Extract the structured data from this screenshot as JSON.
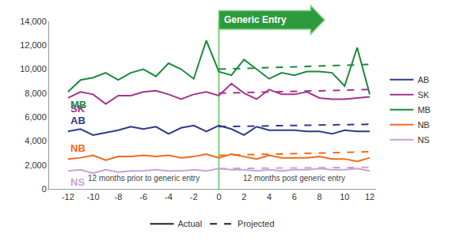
{
  "chart_data": {
    "type": "line",
    "x": [
      -12,
      -11,
      -10,
      -9,
      -8,
      -7,
      -6,
      -5,
      -4,
      -3,
      -2,
      -1,
      0,
      1,
      2,
      3,
      4,
      5,
      6,
      7,
      8,
      9,
      10,
      11,
      12
    ],
    "xlim": [
      -13.5,
      12.5
    ],
    "xticks": [
      -12,
      -10,
      -8,
      -6,
      -4,
      -2,
      0,
      2,
      4,
      6,
      8,
      10,
      12
    ],
    "ylim": [
      0,
      14000
    ],
    "yticks": [
      0,
      {
        "value": 2000,
        "label": "2,000"
      },
      {
        "value": 4000,
        "label": "4,000"
      },
      {
        "value": 6000,
        "label": "6,000"
      },
      {
        "value": 8000,
        "label": "8,000"
      },
      {
        "value": 10000,
        "label": "10,000"
      },
      {
        "value": 12000,
        "label": "12,000"
      },
      {
        "value": 14000,
        "label": "14,000"
      }
    ],
    "grid": false,
    "legend": "right",
    "series": [
      {
        "name": "AB",
        "color": "#2b3a8c",
        "values": [
          4800,
          5000,
          4500,
          4700,
          4900,
          5200,
          5000,
          5200,
          4600,
          5100,
          5300,
          4800,
          5300,
          5000,
          4500,
          5200,
          4900,
          4900,
          4900,
          4800,
          4800,
          4600,
          4900,
          4800,
          4800
        ],
        "projected": [
          null,
          null,
          null,
          null,
          null,
          null,
          null,
          null,
          null,
          null,
          null,
          null,
          5200,
          5220,
          5230,
          5250,
          5260,
          5280,
          5300,
          5310,
          5330,
          5340,
          5360,
          5380,
          5400
        ]
      },
      {
        "name": "SK",
        "color": "#a5338f",
        "values": [
          7600,
          8100,
          7900,
          7100,
          7800,
          7800,
          8100,
          8200,
          7900,
          7500,
          7900,
          8100,
          7800,
          8800,
          8000,
          7500,
          8300,
          7900,
          7900,
          8100,
          7600,
          7500,
          7500,
          7600,
          7700
        ],
        "projected": [
          null,
          null,
          null,
          null,
          null,
          null,
          null,
          null,
          null,
          null,
          null,
          null,
          8000,
          8020,
          8050,
          8070,
          8100,
          8120,
          8150,
          8170,
          8200,
          8220,
          8250,
          8270,
          8300
        ]
      },
      {
        "name": "MB",
        "color": "#1b8a3c",
        "values": [
          8100,
          9100,
          9300,
          9700,
          9100,
          9700,
          10000,
          9400,
          10500,
          10000,
          9200,
          12400,
          9800,
          9500,
          10800,
          10000,
          9200,
          9700,
          9500,
          9800,
          9800,
          9700,
          8600,
          11800,
          7900
        ],
        "projected": [
          null,
          null,
          null,
          null,
          null,
          null,
          null,
          null,
          null,
          null,
          null,
          null,
          10000,
          10030,
          10070,
          10100,
          10130,
          10170,
          10200,
          10230,
          10270,
          10300,
          10330,
          10370,
          10400
        ]
      },
      {
        "name": "NB",
        "color": "#f26a1b",
        "values": [
          2500,
          2600,
          2800,
          2400,
          2700,
          2700,
          2800,
          2700,
          2800,
          2600,
          2700,
          2900,
          2600,
          2900,
          2700,
          2500,
          2800,
          2600,
          2600,
          2600,
          2700,
          2500,
          2500,
          2300,
          2600
        ],
        "projected": [
          null,
          null,
          null,
          null,
          null,
          null,
          null,
          null,
          null,
          null,
          null,
          null,
          2800,
          2820,
          2850,
          2870,
          2900,
          2920,
          2950,
          2970,
          3000,
          3020,
          3050,
          3070,
          3100
        ]
      },
      {
        "name": "NS",
        "color": "#c8a2d8",
        "values": [
          1500,
          1600,
          1300,
          1600,
          1400,
          1500,
          1500,
          1600,
          1500,
          1500,
          1600,
          1500,
          1700,
          1600,
          1600,
          1500,
          1600,
          1500,
          1600,
          1600,
          1700,
          1600,
          1600,
          1700,
          1500
        ],
        "projected": [
          null,
          null,
          null,
          null,
          null,
          null,
          null,
          null,
          null,
          null,
          null,
          null,
          1700,
          1710,
          1720,
          1720,
          1730,
          1740,
          1750,
          1760,
          1770,
          1780,
          1780,
          1790,
          1800
        ]
      }
    ],
    "line_styles": [
      {
        "label": "Actual",
        "line_style": "solid"
      },
      {
        "label": "Projected",
        "line_style": "dashed"
      }
    ],
    "entry": {
      "text": "Generic Entry",
      "x": 0
    },
    "periods": [
      "12 months prior to generic entry",
      "12 months post generic entry"
    ]
  }
}
